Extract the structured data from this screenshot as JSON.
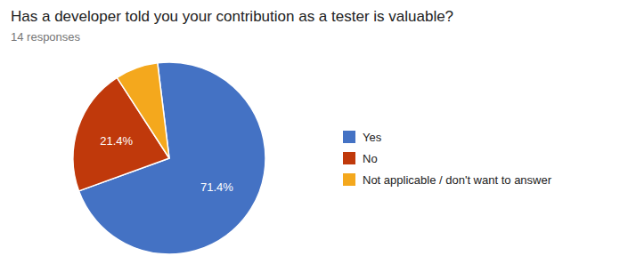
{
  "chart_data": {
    "type": "pie",
    "title": "Has a developer told you your contribution as a tester is valuable?",
    "subtitle": "14 responses",
    "categories": [
      "Yes",
      "No",
      "Not applicable / don't want to answer"
    ],
    "values": [
      71.4,
      21.4,
      7.2
    ],
    "colors": [
      "#4472C4",
      "#C0390B",
      "#F4A81D"
    ],
    "value_labels": [
      "71.4%",
      "21.4%",
      null
    ],
    "data_labels": true,
    "legend": "right"
  }
}
